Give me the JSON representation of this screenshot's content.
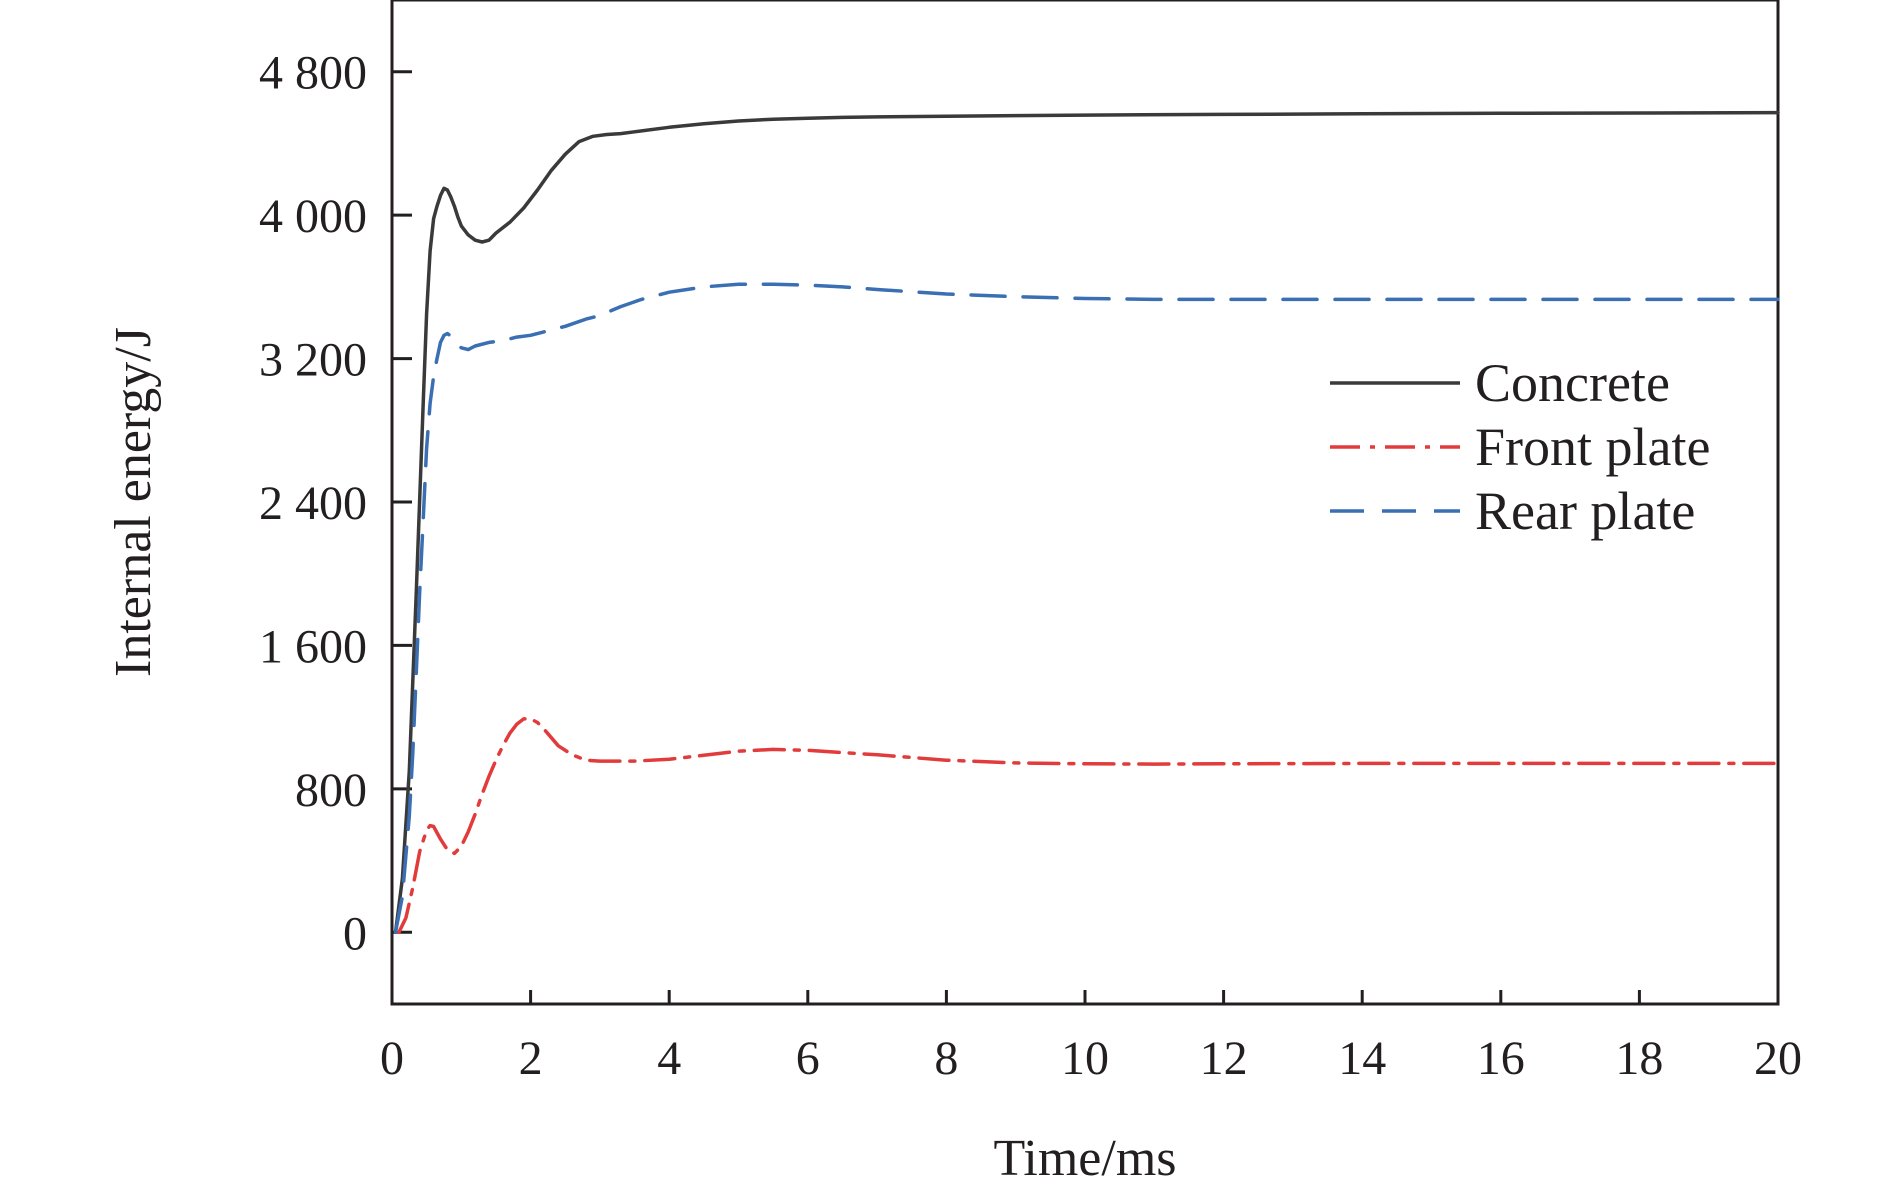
{
  "chart_data": {
    "type": "line",
    "title": "",
    "xlabel": "Time/ms",
    "ylabel": "Internal energy/J",
    "xlim": [
      0,
      20
    ],
    "ylim": [
      -400,
      5200
    ],
    "xticks": [
      0,
      2,
      4,
      6,
      8,
      10,
      12,
      14,
      16,
      18,
      20
    ],
    "xtick_labels": [
      "0",
      "2",
      "4",
      "6",
      "8",
      "10",
      "12",
      "14",
      "16",
      "18",
      "20"
    ],
    "yticks": [
      0,
      800,
      1600,
      2400,
      3200,
      4000,
      4800
    ],
    "ytick_labels": [
      "0",
      "800",
      "1 600",
      "2 400",
      "3 200",
      "4 000",
      "4 800"
    ],
    "grid": false,
    "legend_position": "right",
    "series": [
      {
        "name": "Concrete",
        "color": "#3a3a3a",
        "style": "solid",
        "x": [
          0.05,
          0.15,
          0.25,
          0.35,
          0.45,
          0.5,
          0.55,
          0.6,
          0.65,
          0.7,
          0.75,
          0.8,
          0.85,
          0.9,
          0.95,
          1.0,
          1.1,
          1.2,
          1.3,
          1.4,
          1.5,
          1.7,
          1.9,
          2.1,
          2.3,
          2.5,
          2.7,
          2.9,
          3.1,
          3.3,
          3.5,
          4.0,
          4.5,
          5.0,
          5.5,
          6.0,
          6.5,
          7.0,
          8.0,
          9.0,
          10.0,
          12.0,
          14.0,
          16.0,
          18.0,
          20.0
        ],
        "values": [
          0,
          300,
          900,
          1900,
          2950,
          3450,
          3800,
          3980,
          4050,
          4110,
          4150,
          4140,
          4100,
          4050,
          3990,
          3940,
          3890,
          3860,
          3850,
          3860,
          3900,
          3960,
          4040,
          4140,
          4250,
          4340,
          4410,
          4440,
          4450,
          4455,
          4465,
          4490,
          4510,
          4525,
          4535,
          4540,
          4545,
          4548,
          4552,
          4555,
          4558,
          4562,
          4565,
          4568,
          4570,
          4572
        ]
      },
      {
        "name": "Front plate",
        "color": "#e23b3b",
        "style": "dashdot",
        "x": [
          0.1,
          0.2,
          0.3,
          0.4,
          0.5,
          0.55,
          0.6,
          0.7,
          0.8,
          0.9,
          1.0,
          1.1,
          1.2,
          1.3,
          1.4,
          1.5,
          1.6,
          1.7,
          1.8,
          1.9,
          2.0,
          2.1,
          2.2,
          2.4,
          2.6,
          2.8,
          3.0,
          3.5,
          4.0,
          5.0,
          5.5,
          6.0,
          7.0,
          8.0,
          9.0,
          10.0,
          11.0,
          12.0,
          14.0,
          16.0,
          18.0,
          20.0
        ],
        "values": [
          0,
          80,
          250,
          450,
          570,
          595,
          590,
          520,
          460,
          440,
          480,
          560,
          660,
          770,
          870,
          960,
          1040,
          1110,
          1160,
          1190,
          1190,
          1170,
          1130,
          1040,
          990,
          960,
          955,
          955,
          965,
          1010,
          1020,
          1015,
          990,
          960,
          945,
          940,
          938,
          940,
          942,
          942,
          942,
          942
        ]
      },
      {
        "name": "Rear plate",
        "color": "#3a6fb3",
        "style": "dashed",
        "x": [
          0.05,
          0.15,
          0.25,
          0.3,
          0.35,
          0.4,
          0.45,
          0.5,
          0.55,
          0.6,
          0.65,
          0.7,
          0.75,
          0.8,
          0.85,
          0.9,
          1.0,
          1.1,
          1.2,
          1.4,
          1.6,
          1.8,
          2.0,
          2.2,
          2.5,
          2.8,
          3.0,
          3.3,
          3.6,
          4.0,
          4.5,
          5.0,
          5.5,
          6.0,
          6.5,
          7.0,
          8.0,
          9.0,
          10.0,
          11.0,
          12.0,
          14.0,
          16.0,
          18.0,
          20.0
        ],
        "values": [
          0,
          200,
          650,
          1000,
          1450,
          1900,
          2300,
          2700,
          2950,
          3100,
          3200,
          3290,
          3330,
          3340,
          3325,
          3290,
          3260,
          3250,
          3270,
          3290,
          3300,
          3320,
          3330,
          3350,
          3380,
          3420,
          3440,
          3490,
          3530,
          3570,
          3600,
          3615,
          3615,
          3610,
          3600,
          3585,
          3560,
          3545,
          3535,
          3530,
          3530,
          3530,
          3530,
          3530,
          3530
        ]
      }
    ]
  }
}
